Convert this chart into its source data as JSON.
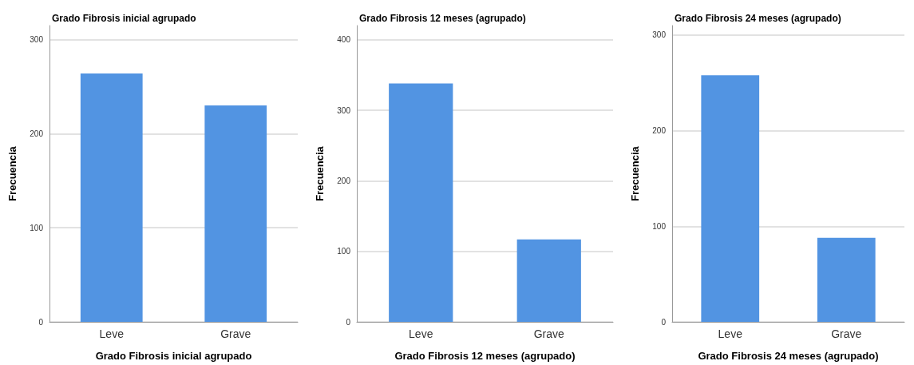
{
  "chart_data": [
    {
      "type": "bar",
      "title": "Grado Fibrosis inicial agrupado",
      "xlabel": "Grado Fibrosis inicial agrupado",
      "ylabel": "Frecuencia",
      "categories": [
        "Leve",
        "Grave"
      ],
      "values": [
        264,
        230
      ],
      "color": "#5294e2",
      "ylim": [
        0,
        315
      ],
      "yticks": [
        0,
        100,
        200,
        300
      ],
      "grid": "y"
    },
    {
      "type": "bar",
      "title": "Grado Fibrosis 12 meses (agrupado)",
      "xlabel": "Grado Fibrosis 12 meses (agrupado)",
      "ylabel": "Frecuencia",
      "categories": [
        "Leve",
        "Grave"
      ],
      "values": [
        338,
        117
      ],
      "color": "#5294e2",
      "ylim": [
        0,
        420
      ],
      "yticks": [
        0,
        100,
        200,
        300,
        400
      ],
      "grid": "y"
    },
    {
      "type": "bar",
      "title": "Grado Fibrosis 24 meses (agrupado)",
      "xlabel": "Grado Fibrosis 24 meses (agrupado)",
      "ylabel": "Frecuencia",
      "categories": [
        "Leve",
        "Grave"
      ],
      "values": [
        258,
        88
      ],
      "color": "#5294e2",
      "ylim": [
        0,
        310
      ],
      "yticks": [
        0,
        100,
        200,
        300
      ],
      "grid": "y"
    }
  ]
}
